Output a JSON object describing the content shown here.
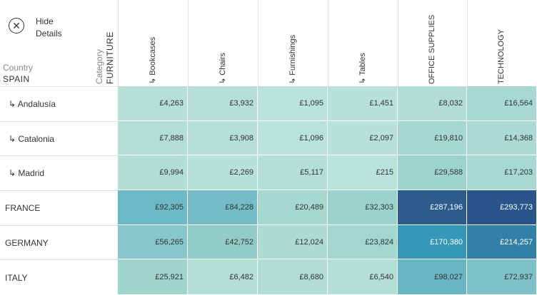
{
  "hide_details": {
    "label": "Hide\nDetails",
    "icon": "close-icon"
  },
  "row_header_title": "Country",
  "row_header_value": "SPAIN",
  "column_header_title": "Category",
  "column_header_value": "FURNITURE",
  "columns": [
    "↳ Bookcases",
    "↳ Chairs",
    "↳ Furnishings",
    "↳ Tables",
    "OFFICE SUPPLIES",
    "TECHNOLOGY"
  ],
  "rows": [
    {
      "label": "↳ Andalusía",
      "values": [
        "£4,263",
        "£3,932",
        "£1,095",
        "£1,451",
        "£8,032",
        "£16,564"
      ],
      "colors": [
        "#b6e0d6",
        "#b6e0d6",
        "#b9e2d8",
        "#b8e1d7",
        "#b2ddd4",
        "#a8d9d1"
      ]
    },
    {
      "label": "↳ Catalonia",
      "values": [
        "£7,888",
        "£3,908",
        "£1,096",
        "£2,097",
        "£19,810",
        "£14,368"
      ],
      "colors": [
        "#b3ded5",
        "#b6e0d6",
        "#b9e2d8",
        "#b8e1d7",
        "#a6d8d0",
        "#aadad2"
      ]
    },
    {
      "label": "↳ Madrid",
      "values": [
        "£9,994",
        "£2,269",
        "£5,117",
        "£215",
        "£29,588",
        "£17,203"
      ],
      "colors": [
        "#b1ddd4",
        "#b8e1d7",
        "#b4dfd5",
        "#bae3d9",
        "#9dd3cd",
        "#a8d9d1"
      ]
    },
    {
      "label": "FRANCE",
      "values": [
        "£92,305",
        "£84,228",
        "£20,489",
        "£32,303",
        "£287,196",
        "£293,773"
      ],
      "colors": [
        "#6db8c5",
        "#74bcc7",
        "#a6d8d0",
        "#9bd2cc",
        "#2c5c8c",
        "#29558a"
      ]
    },
    {
      "label": "GERMANY",
      "values": [
        "£56,265",
        "£42,752",
        "£12,024",
        "£23,824",
        "£170,380",
        "£214,257"
      ],
      "colors": [
        "#87c7ca",
        "#91ccc9",
        "#aedcd3",
        "#a2d6ce",
        "#3598b8",
        "#3380a6"
      ]
    },
    {
      "label": "ITALY",
      "values": [
        "£25,921",
        "£6,482",
        "£8,680",
        "£6,540",
        "£98,027",
        "£72,937"
      ],
      "colors": [
        "#9fd4cd",
        "#b4dfd5",
        "#b2ddd4",
        "#b4dfd5",
        "#69b5c4",
        "#7ec1c8"
      ]
    }
  ]
}
